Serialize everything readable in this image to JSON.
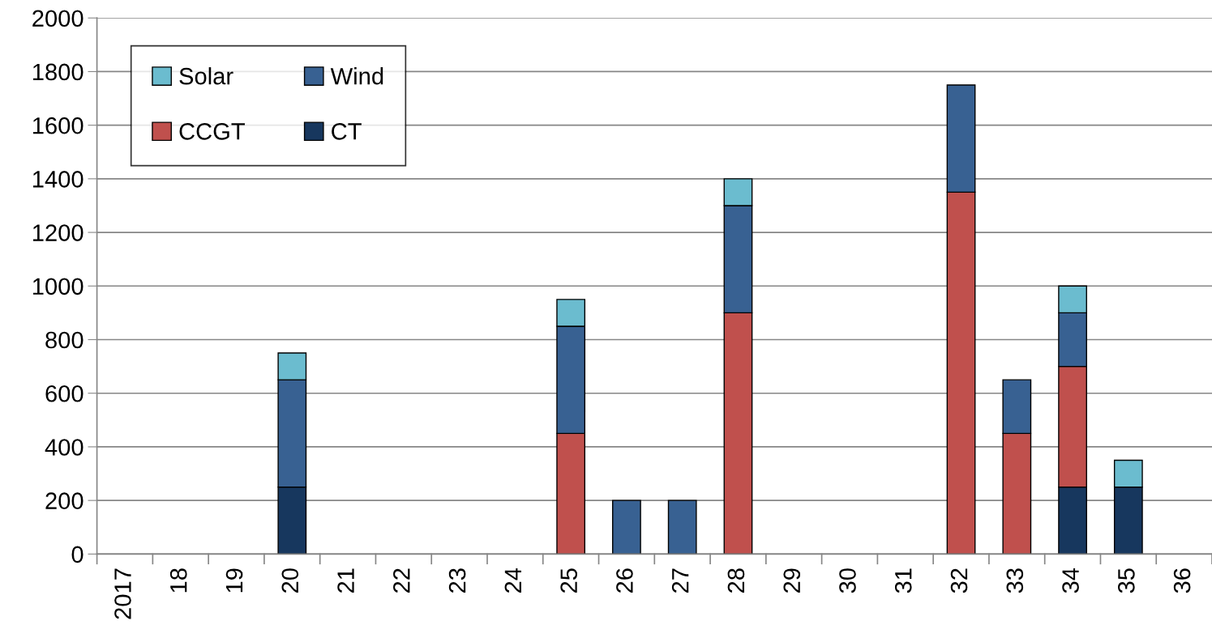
{
  "chart_data": {
    "type": "bar",
    "stacked": true,
    "categories": [
      "2017",
      "18",
      "19",
      "20",
      "21",
      "22",
      "23",
      "24",
      "25",
      "26",
      "27",
      "28",
      "29",
      "30",
      "31",
      "32",
      "33",
      "34",
      "35",
      "36"
    ],
    "series": [
      {
        "name": "CT",
        "color": "#17375e",
        "values": [
          null,
          null,
          null,
          250,
          null,
          null,
          null,
          null,
          null,
          null,
          null,
          null,
          null,
          null,
          null,
          null,
          null,
          250,
          250,
          null
        ]
      },
      {
        "name": "CCGT",
        "color": "#c0504d",
        "values": [
          null,
          null,
          null,
          null,
          null,
          null,
          null,
          null,
          450,
          null,
          null,
          900,
          null,
          null,
          null,
          1350,
          450,
          450,
          null,
          null
        ]
      },
      {
        "name": "Wind",
        "color": "#386192",
        "values": [
          null,
          null,
          null,
          400,
          null,
          null,
          null,
          null,
          400,
          200,
          200,
          400,
          null,
          null,
          null,
          400,
          200,
          200,
          null,
          null
        ]
      },
      {
        "name": "Solar",
        "color": "#6bbccf",
        "values": [
          null,
          null,
          null,
          100,
          null,
          null,
          null,
          null,
          100,
          null,
          null,
          100,
          null,
          null,
          null,
          null,
          null,
          100,
          100,
          null
        ]
      }
    ],
    "ylim": [
      0,
      2000
    ],
    "yticks": [
      0,
      200,
      400,
      600,
      800,
      1000,
      1200,
      1400,
      1600,
      1800,
      2000
    ],
    "grid": "y",
    "legend": "top left"
  }
}
